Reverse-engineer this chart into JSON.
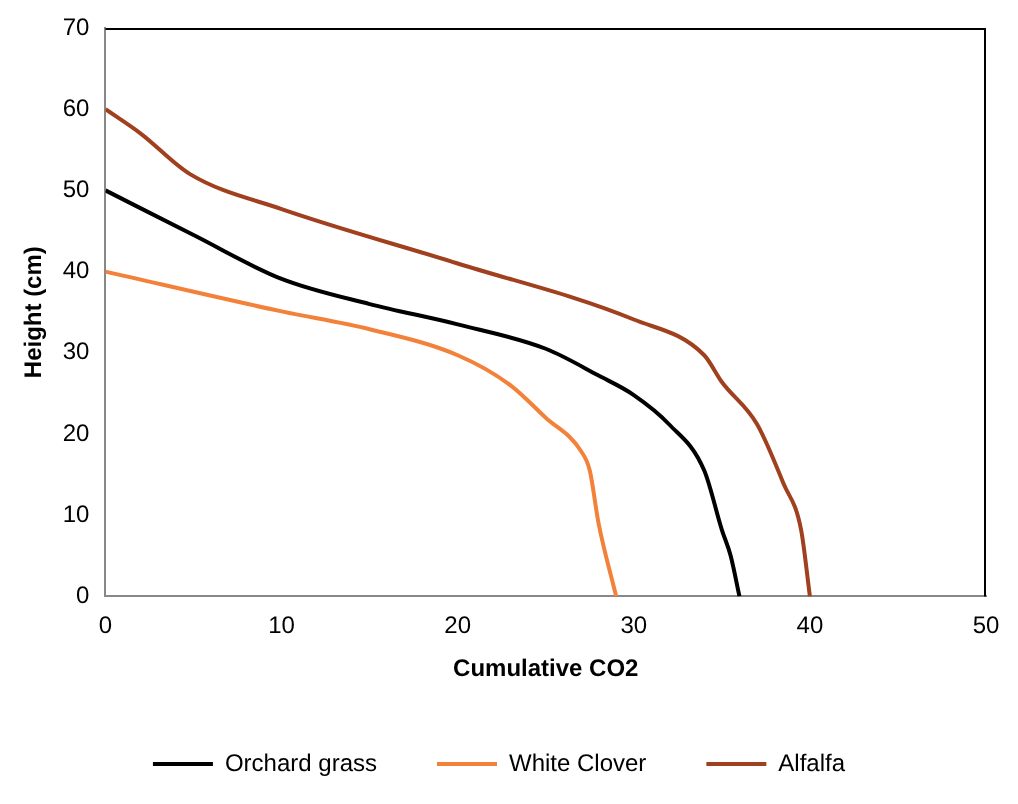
{
  "chart_data": {
    "type": "line",
    "xlabel": "Cumulative CO2",
    "ylabel": "Height (cm)",
    "xlim": [
      0,
      50
    ],
    "ylim": [
      0,
      70
    ],
    "xticks": [
      0,
      10,
      20,
      30,
      40,
      50
    ],
    "yticks": [
      0,
      10,
      20,
      30,
      40,
      50,
      60,
      70
    ],
    "grid": false,
    "legend": "bottom",
    "marker": "none",
    "line_style": "solid",
    "series": [
      {
        "name": "Orchard grass",
        "color": "#000000",
        "x": [
          0,
          5,
          10,
          15,
          20,
          25,
          28,
          30,
          32,
          34,
          35,
          35.5,
          36
        ],
        "values": [
          50,
          44.5,
          39.1,
          36,
          33.5,
          30.5,
          27.2,
          24.8,
          21.2,
          15.5,
          8.2,
          5,
          0
        ]
      },
      {
        "name": "White Clover",
        "color": "#f4813a",
        "x": [
          0,
          10,
          15,
          20,
          23,
          25,
          27,
          27.5,
          28,
          29
        ],
        "values": [
          40,
          35.1,
          32.9,
          29.7,
          26,
          22,
          17.9,
          15.5,
          9,
          0
        ]
      },
      {
        "name": "Alfalfa",
        "color": "#a0401e",
        "x": [
          0,
          2,
          4.8,
          10,
          20,
          30,
          34,
          35,
          37,
          38.5,
          39.5,
          40
        ],
        "values": [
          60,
          57,
          52,
          47.7,
          41,
          34.1,
          29.7,
          26.4,
          21.2,
          13.9,
          8.2,
          0
        ]
      }
    ]
  }
}
